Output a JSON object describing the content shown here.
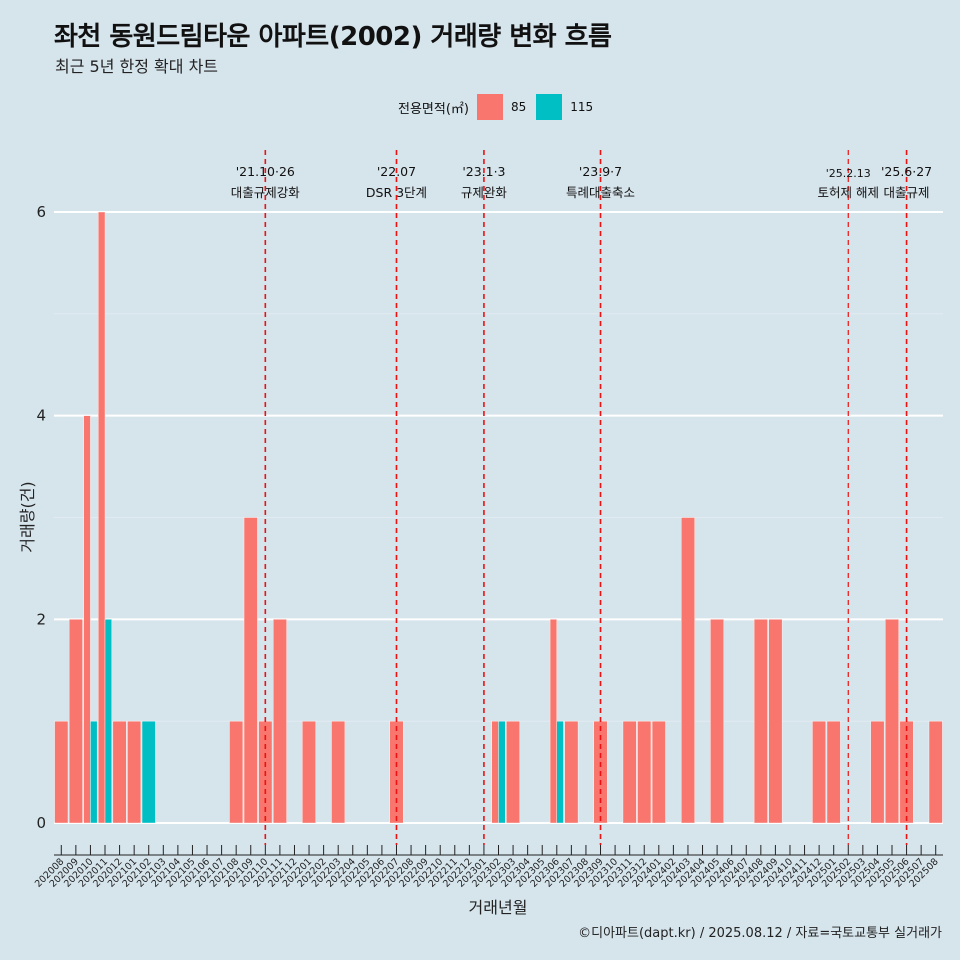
{
  "header": {
    "title": "좌천 동원드림타운 아파트(2002) 거래량 변화 흐름",
    "subtitle": "최근 5년 한정 확대 차트"
  },
  "legend": {
    "title": "전용면적(㎡)",
    "items": [
      {
        "label": "85",
        "color": "#f8766d"
      },
      {
        "label": "115",
        "color": "#00bfc4"
      }
    ]
  },
  "caption": "©디아파트(dapt.kr) / 2025.08.12 / 자료=국토교통부 실거래가",
  "chart_data": {
    "type": "bar",
    "xlabel": "거래년월",
    "ylabel": "거래량(건)",
    "ylim": [
      -0.3,
      6.6
    ],
    "yticks": [
      0,
      2,
      4,
      6
    ],
    "grid": true,
    "legend_position": "top",
    "categories": [
      "202008",
      "202009",
      "202010",
      "202011",
      "202012",
      "202101",
      "202102",
      "202103",
      "202104",
      "202105",
      "202106",
      "202107",
      "202108",
      "202109",
      "202110",
      "202111",
      "202112",
      "202201",
      "202202",
      "202203",
      "202204",
      "202205",
      "202206",
      "202207",
      "202208",
      "202209",
      "202210",
      "202211",
      "202212",
      "202301",
      "202302",
      "202303",
      "202304",
      "202305",
      "202306",
      "202307",
      "202308",
      "202309",
      "202310",
      "202311",
      "202312",
      "202401",
      "202402",
      "202403",
      "202404",
      "202405",
      "202406",
      "202407",
      "202408",
      "202409",
      "202410",
      "202411",
      "202412",
      "202501",
      "202502",
      "202503",
      "202504",
      "202505",
      "202506",
      "202507",
      "202508"
    ],
    "series": [
      {
        "name": "85",
        "color": "#f8766d",
        "values": [
          1,
          2,
          4,
          6,
          1,
          1,
          0,
          0,
          0,
          0,
          0,
          0,
          1,
          3,
          1,
          2,
          0,
          1,
          0,
          1,
          0,
          0,
          0,
          1,
          0,
          0,
          0,
          0,
          0,
          0,
          1,
          1,
          0,
          0,
          2,
          1,
          0,
          1,
          0,
          1,
          1,
          1,
          0,
          3,
          0,
          2,
          0,
          0,
          2,
          2,
          0,
          0,
          1,
          1,
          0,
          0,
          1,
          2,
          1,
          0,
          1
        ]
      },
      {
        "name": "115",
        "color": "#00bfc4",
        "values": [
          0,
          0,
          1,
          2,
          0,
          0,
          1,
          0,
          0,
          0,
          0,
          0,
          0,
          0,
          0,
          0,
          0,
          0,
          0,
          0,
          0,
          0,
          0,
          0,
          0,
          0,
          0,
          0,
          0,
          0,
          1,
          0,
          0,
          0,
          1,
          0,
          0,
          0,
          0,
          0,
          0,
          0,
          0,
          0,
          0,
          0,
          0,
          0,
          0,
          0,
          0,
          0,
          0,
          0,
          0,
          0,
          0,
          0,
          0,
          0,
          0
        ]
      }
    ],
    "annotations": [
      {
        "x": "202110",
        "date": "'21.10·26",
        "label": "대출규제강화"
      },
      {
        "x": "202207",
        "date": "'22.07",
        "label": "DSR 3단계"
      },
      {
        "x": "202301",
        "date": "'23.1·3",
        "label": "규제완화"
      },
      {
        "x": "202309",
        "date": "'23.9·7",
        "label": "특례대출축소"
      },
      {
        "x": "202502",
        "date": "'25.2.13",
        "label": "토허제 해제"
      },
      {
        "x": "202506",
        "date": "'25.6·27",
        "label": "대출규제"
      }
    ]
  }
}
